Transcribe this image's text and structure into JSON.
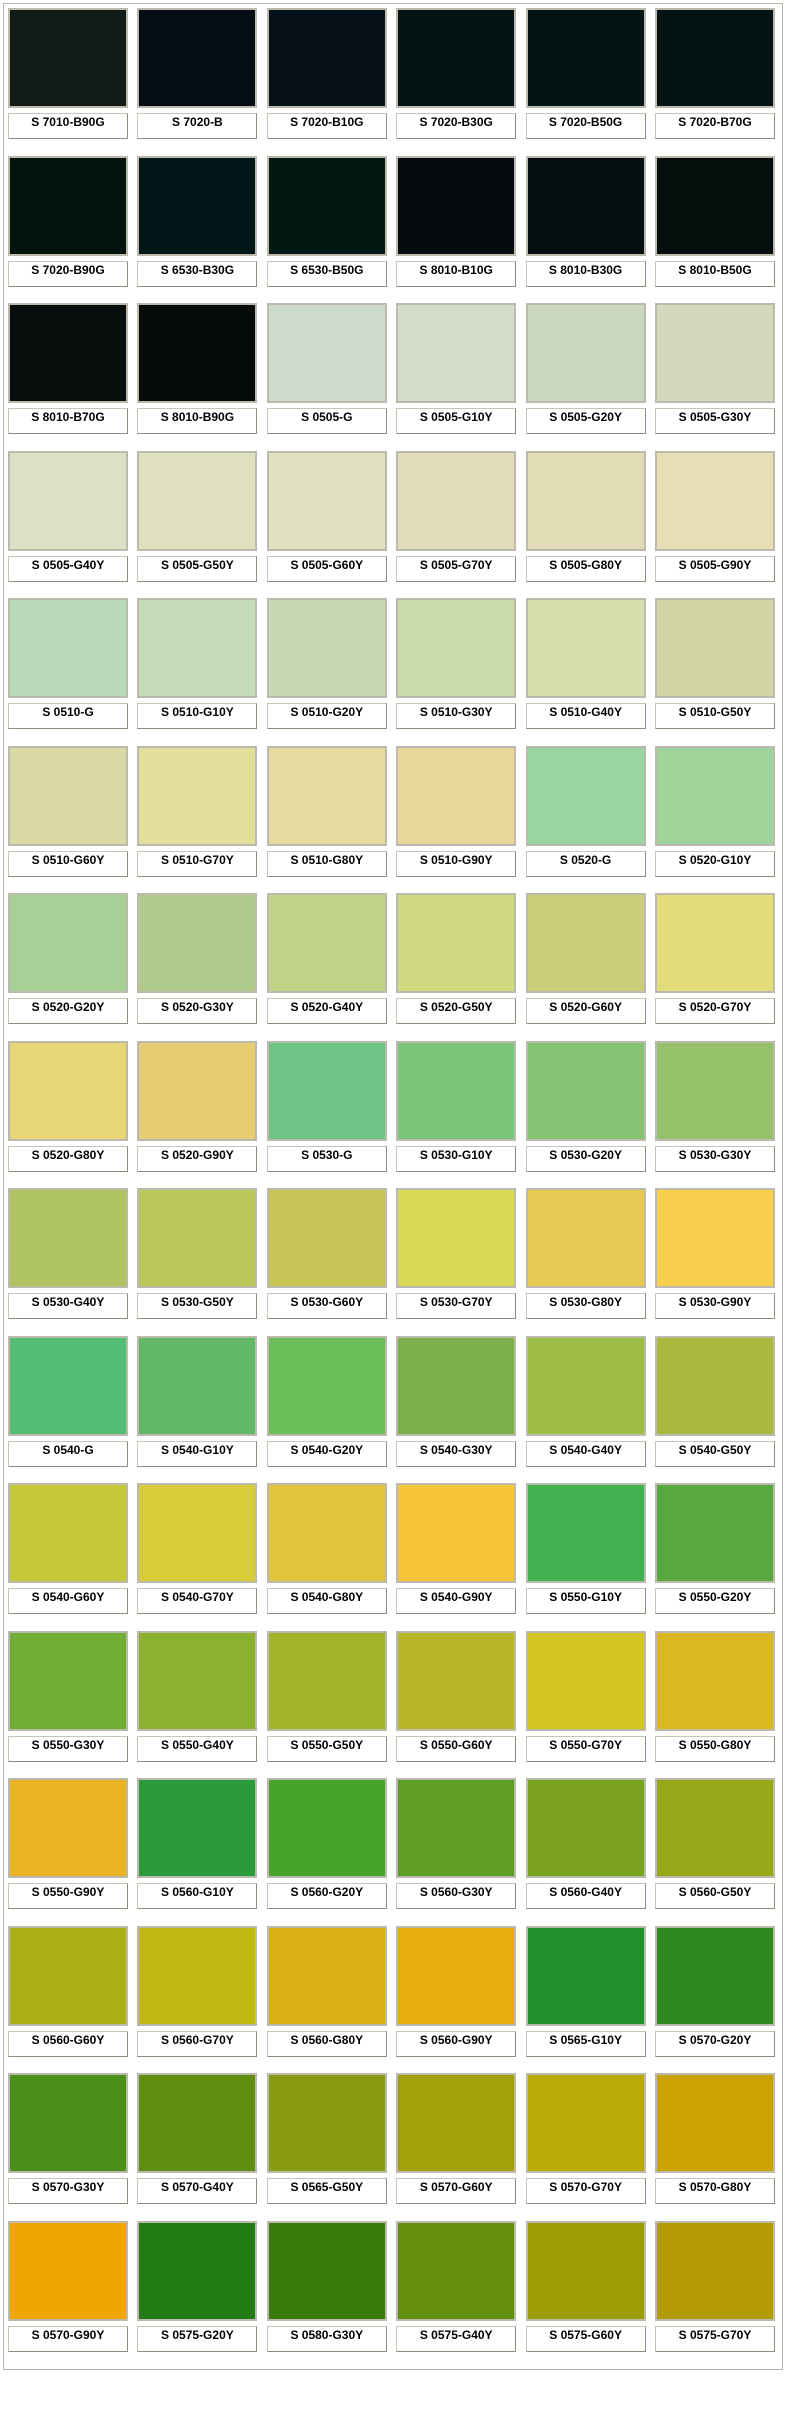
{
  "swatches": [
    {
      "name": "S 7010-B90G",
      "color": "#121a17"
    },
    {
      "name": "S 7020-B",
      "color": "#040c14"
    },
    {
      "name": "S 7020-B10G",
      "color": "#06111a"
    },
    {
      "name": "S 7020-B30G",
      "color": "#051214"
    },
    {
      "name": "S 7020-B50G",
      "color": "#041313"
    },
    {
      "name": "S 7020-B70G",
      "color": "#051412"
    },
    {
      "name": "S 7020-B90G",
      "color": "#061410"
    },
    {
      "name": "S 6530-B30G",
      "color": "#011617"
    },
    {
      "name": "S 6530-B50G",
      "color": "#021813"
    },
    {
      "name": "S 8010-B10G",
      "color": "#060b10"
    },
    {
      "name": "S 8010-B30G",
      "color": "#050d0f"
    },
    {
      "name": "S 8010-B50G",
      "color": "#060e0d"
    },
    {
      "name": "S 8010-B70G",
      "color": "#060d0c"
    },
    {
      "name": "S 8010-B90G",
      "color": "#070c0a"
    },
    {
      "name": "S 0505-G",
      "color": "#cddcca"
    },
    {
      "name": "S 0505-G10Y",
      "color": "#d3dcc8"
    },
    {
      "name": "S 0505-G20Y",
      "color": "#cbd7bf"
    },
    {
      "name": "S 0505-G30Y",
      "color": "#d4d8bd"
    },
    {
      "name": "S 0505-G40Y",
      "color": "#dde0c4"
    },
    {
      "name": "S 0505-G50Y",
      "color": "#dfe0bd"
    },
    {
      "name": "S 0505-G60Y",
      "color": "#e1e0bf"
    },
    {
      "name": "S 0505-G70Y",
      "color": "#e0dbb8"
    },
    {
      "name": "S 0505-G80Y",
      "color": "#e1dbb6"
    },
    {
      "name": "S 0505-G90Y",
      "color": "#e8ddb5"
    },
    {
      "name": "S 0510-G",
      "color": "#b9dbbb"
    },
    {
      "name": "S 0510-G10Y",
      "color": "#c4dbb8"
    },
    {
      "name": "S 0510-G20Y",
      "color": "#c8d8b5"
    },
    {
      "name": "S 0510-G30Y",
      "color": "#cbdaac"
    },
    {
      "name": "S 0510-G40Y",
      "color": "#d4dfad"
    },
    {
      "name": "S 0510-G50Y",
      "color": "#d2d6a7"
    },
    {
      "name": "S 0510-G60Y",
      "color": "#d9d9a4"
    },
    {
      "name": "S 0510-G70Y",
      "color": "#e2df9c"
    },
    {
      "name": "S 0510-G80Y",
      "color": "#e6da9e"
    },
    {
      "name": "S 0510-G90Y",
      "color": "#e9d797"
    },
    {
      "name": "S 0520-G",
      "color": "#9bd5a4"
    },
    {
      "name": "S 0520-G10Y",
      "color": "#9fd49a"
    },
    {
      "name": "S 0520-G20Y",
      "color": "#a7d096"
    },
    {
      "name": "S 0520-G30Y",
      "color": "#b0cb8b"
    },
    {
      "name": "S 0520-G40Y",
      "color": "#c2d389"
    },
    {
      "name": "S 0520-G50Y",
      "color": "#d1da80"
    },
    {
      "name": "S 0520-G60Y",
      "color": "#cbcd7b"
    },
    {
      "name": "S 0520-G70Y",
      "color": "#e3dc7a"
    },
    {
      "name": "S 0520-G80Y",
      "color": "#e8d575"
    },
    {
      "name": "S 0520-G90Y",
      "color": "#e6cc72"
    },
    {
      "name": "S 0530-G",
      "color": "#6ec385"
    },
    {
      "name": "S 0530-G10Y",
      "color": "#7bc57a"
    },
    {
      "name": "S 0530-G20Y",
      "color": "#86c373"
    },
    {
      "name": "S 0530-G30Y",
      "color": "#95c16a"
    },
    {
      "name": "S 0530-G40Y",
      "color": "#afc363"
    },
    {
      "name": "S 0530-G50Y",
      "color": "#bbc65b"
    },
    {
      "name": "S 0530-G60Y",
      "color": "#c9c657"
    },
    {
      "name": "S 0530-G70Y",
      "color": "#d9d857"
    },
    {
      "name": "S 0530-G80Y",
      "color": "#e4c955"
    },
    {
      "name": "S 0530-G90Y",
      "color": "#f9cf4e"
    },
    {
      "name": "S 0540-G",
      "color": "#54bd74"
    },
    {
      "name": "S 0540-G10Y",
      "color": "#63b865"
    },
    {
      "name": "S 0540-G20Y",
      "color": "#6bbd58"
    },
    {
      "name": "S 0540-G30Y",
      "color": "#7cb04d"
    },
    {
      "name": "S 0540-G40Y",
      "color": "#9dbd46"
    },
    {
      "name": "S 0540-G50Y",
      "color": "#aab93e"
    },
    {
      "name": "S 0540-G60Y",
      "color": "#c4c839"
    },
    {
      "name": "S 0540-G70Y",
      "color": "#d8cc3b"
    },
    {
      "name": "S 0540-G80Y",
      "color": "#e1c43a"
    },
    {
      "name": "S 0540-G90Y",
      "color": "#f6c438"
    },
    {
      "name": "S 0550-G10Y",
      "color": "#43b050"
    },
    {
      "name": "S 0550-G20Y",
      "color": "#57a83e"
    },
    {
      "name": "S 0550-G30Y",
      "color": "#70ae35"
    },
    {
      "name": "S 0550-G40Y",
      "color": "#8cb030"
    },
    {
      "name": "S 0550-G50Y",
      "color": "#a3b42c"
    },
    {
      "name": "S 0550-G60Y",
      "color": "#bab629"
    },
    {
      "name": "S 0550-G70Y",
      "color": "#d3c524"
    },
    {
      "name": "S 0550-G80Y",
      "color": "#dab822"
    },
    {
      "name": "S 0550-G90Y",
      "color": "#e9b321"
    },
    {
      "name": "S 0560-G10Y",
      "color": "#2a9a3a"
    },
    {
      "name": "S 0560-G20Y",
      "color": "#47a42b"
    },
    {
      "name": "S 0560-G30Y",
      "color": "#5f9e26"
    },
    {
      "name": "S 0560-G40Y",
      "color": "#7ba121"
    },
    {
      "name": "S 0560-G50Y",
      "color": "#96a91b"
    },
    {
      "name": "S 0560-G60Y",
      "color": "#acaf16"
    },
    {
      "name": "S 0560-G70Y",
      "color": "#c3b711"
    },
    {
      "name": "S 0560-G80Y",
      "color": "#d9b013"
    },
    {
      "name": "S 0560-G90Y",
      "color": "#e9ac10"
    },
    {
      "name": "S 0565-G10Y",
      "color": "#22902c"
    },
    {
      "name": "S 0570-G20Y",
      "color": "#2f891e"
    },
    {
      "name": "S 0570-G30Y",
      "color": "#4b8f1a"
    },
    {
      "name": "S 0570-G40Y",
      "color": "#618d12"
    },
    {
      "name": "S 0565-G50Y",
      "color": "#889a10"
    },
    {
      "name": "S 0570-G60Y",
      "color": "#a2a00b"
    },
    {
      "name": "S 0570-G70Y",
      "color": "#bba906"
    },
    {
      "name": "S 0570-G80Y",
      "color": "#cca305"
    },
    {
      "name": "S 0570-G90Y",
      "color": "#f1a500"
    },
    {
      "name": "S 0575-G20Y",
      "color": "#237b15"
    },
    {
      "name": "S 0580-G30Y",
      "color": "#3b7a0c"
    },
    {
      "name": "S 0575-G40Y",
      "color": "#638e0e"
    },
    {
      "name": "S 0575-G60Y",
      "color": "#9c9d02"
    },
    {
      "name": "S 0575-G70Y",
      "color": "#b49b04"
    }
  ]
}
